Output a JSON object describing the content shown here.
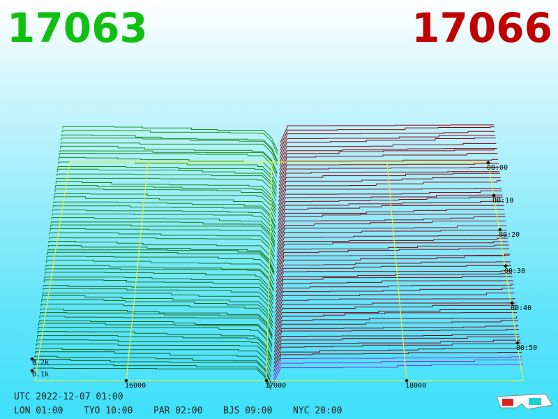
{
  "header": {
    "bid": "17063",
    "ask": "17066"
  },
  "price_axis": [
    "16000",
    "17000",
    "18000"
  ],
  "time_axis": [
    "00:00",
    "00:10",
    "00:20",
    "00:30",
    "00:40",
    "00:50"
  ],
  "volume_axis": [
    "0.2k",
    "0.1k"
  ],
  "footer": {
    "utc": "UTC 2022-12-07 01:00",
    "zones": [
      "LON 01:00",
      "TYO 10:00",
      "PAR 02:00",
      "BJS 09:00",
      "NYC 20:00"
    ]
  }
}
